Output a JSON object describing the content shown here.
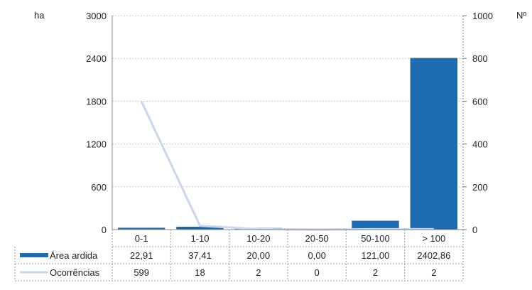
{
  "chart_data": {
    "type": "bar",
    "categories": [
      "0-1",
      "1-10",
      "10-20",
      "20-50",
      "50-100",
      "> 100"
    ],
    "y_left": {
      "label": "ha",
      "ylim": [
        0,
        3000
      ],
      "ticks": [
        "3000",
        "2400",
        "1800",
        "1200",
        "600",
        "0"
      ]
    },
    "y_right": {
      "label": "Nº",
      "ylim": [
        0,
        1000
      ],
      "ticks": [
        "1000",
        "800",
        "600",
        "400",
        "200",
        "0"
      ]
    },
    "grid": true,
    "legend": "data-table-left",
    "series": [
      {
        "name": "Área ardida",
        "type": "bar",
        "axis": "left",
        "color": "#1f6db1",
        "values": [
          22.91,
          37.41,
          20.0,
          0.0,
          121.0,
          2402.86
        ],
        "labels": [
          "22,91",
          "37,41",
          "20,00",
          "0,00",
          "121,00",
          "2402,86"
        ]
      },
      {
        "name": "Ocorrências",
        "type": "line",
        "axis": "right",
        "color": "#c9d6ee",
        "values": [
          599,
          18,
          2,
          0,
          2,
          2
        ],
        "labels": [
          "599",
          "18",
          "2",
          "0",
          "2",
          "2"
        ]
      }
    ]
  }
}
